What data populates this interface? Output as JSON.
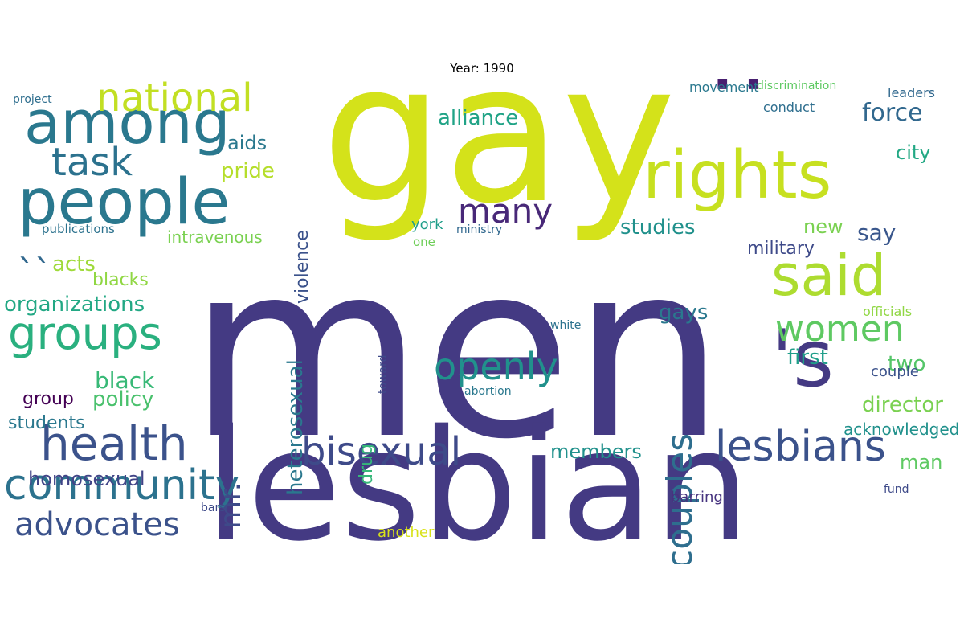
{
  "title": "Year: 1990",
  "words": [
    {
      "text": "men",
      "color": "#443a83"
    },
    {
      "text": "gay",
      "color": "#d4e21a"
    },
    {
      "text": "lesbian",
      "color": "#443a83"
    },
    {
      "text": "people",
      "color": "#2a788e"
    },
    {
      "text": "rights",
      "color": "#c7e020"
    },
    {
      "text": "'s",
      "color": "#443a83"
    },
    {
      "text": "''",
      "color": "#481f70"
    },
    {
      "text": "among",
      "color": "#2a788e"
    },
    {
      "text": "said",
      "color": "#addc30"
    },
    {
      "text": "community",
      "color": "#2c728e"
    },
    {
      "text": "health",
      "color": "#3b528b"
    },
    {
      "text": "groups",
      "color": "#2ab07f"
    },
    {
      "text": "bisexual",
      "color": "#3e4a89"
    },
    {
      "text": "lesbians",
      "color": "#3b528b"
    },
    {
      "text": "advocates",
      "color": "#3b528b"
    },
    {
      "text": "national",
      "color": "#c2df23"
    },
    {
      "text": "task",
      "color": "#2c728e"
    },
    {
      "text": "women",
      "color": "#5ec962"
    },
    {
      "text": "openly",
      "color": "#21918c"
    },
    {
      "text": "many",
      "color": "#482878"
    },
    {
      "text": "couples",
      "color": "#2e6e8e"
    },
    {
      "text": "mr.",
      "color": "#3e4a89"
    },
    {
      "text": "``",
      "color": "#31688e"
    },
    {
      "text": "organizations",
      "color": "#22a884"
    },
    {
      "text": "force",
      "color": "#31688e"
    },
    {
      "text": "alliance",
      "color": "#20a386"
    },
    {
      "text": "director",
      "color": "#7ad151"
    },
    {
      "text": "homosexual",
      "color": "#414487"
    },
    {
      "text": "policy",
      "color": "#4ac16d"
    },
    {
      "text": "heterosexual",
      "color": "#2a788e"
    },
    {
      "text": "violence",
      "color": "#3b528b"
    },
    {
      "text": "pride",
      "color": "#b5de2b"
    },
    {
      "text": "members",
      "color": "#21918c"
    },
    {
      "text": "black",
      "color": "#38b977"
    },
    {
      "text": "studies",
      "color": "#21918c"
    },
    {
      "text": "intravenous",
      "color": "#7ad151"
    },
    {
      "text": "first",
      "color": "#1f9e89"
    },
    {
      "text": "acknowledged",
      "color": "#21918c"
    },
    {
      "text": "aids",
      "color": "#2a788e"
    },
    {
      "text": "students",
      "color": "#2a788e"
    },
    {
      "text": "say",
      "color": "#39568c"
    },
    {
      "text": "city",
      "color": "#22a884"
    },
    {
      "text": "military",
      "color": "#3e4a89"
    },
    {
      "text": "gays",
      "color": "#2a788e"
    },
    {
      "text": "acts",
      "color": "#9fda3a"
    },
    {
      "text": "blacks",
      "color": "#90d743"
    },
    {
      "text": "group",
      "color": "#440154"
    },
    {
      "text": "two",
      "color": "#54c568"
    },
    {
      "text": "drug",
      "color": "#35b779"
    },
    {
      "text": "new",
      "color": "#7ad151"
    },
    {
      "text": "man",
      "color": "#5ec962"
    },
    {
      "text": "another",
      "color": "#d8e219"
    },
    {
      "text": "publications",
      "color": "#2c728e"
    },
    {
      "text": "york",
      "color": "#1f9e89"
    },
    {
      "text": "movement",
      "color": "#2a788e"
    },
    {
      "text": "couple",
      "color": "#3b528b"
    },
    {
      "text": "leaders",
      "color": "#31688e"
    },
    {
      "text": "conduct",
      "color": "#2e6e8e"
    },
    {
      "text": "discrimination",
      "color": "#5ec962"
    },
    {
      "text": "project",
      "color": "#2e6e8e"
    },
    {
      "text": "officials",
      "color": "#90d743"
    },
    {
      "text": "bars",
      "color": "#3e4a89"
    },
    {
      "text": "barring",
      "color": "#46337f"
    },
    {
      "text": "white",
      "color": "#2c728e"
    },
    {
      "text": "toward",
      "color": "#3e4a89"
    },
    {
      "text": "fund",
      "color": "#3e4a89"
    },
    {
      "text": "ministry",
      "color": "#31688e"
    },
    {
      "text": "one",
      "color": "#6ece58"
    },
    {
      "text": "abortion",
      "color": "#2a788e"
    }
  ]
}
